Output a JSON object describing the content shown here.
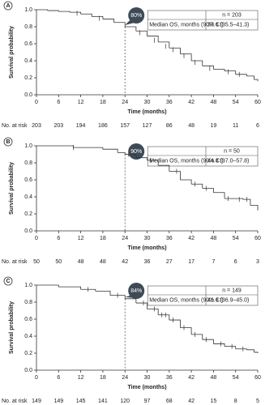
{
  "chart_data": [
    {
      "type": "step",
      "panel": "A",
      "ylabel": "Survival probability",
      "xlabel": "Time (months)",
      "xlim": [
        0,
        60
      ],
      "ylim": [
        0,
        1
      ],
      "xticks": [
        0,
        6,
        12,
        18,
        24,
        30,
        36,
        42,
        48,
        54,
        60
      ],
      "yticks": [
        {
          "value": 0,
          "label": "0.0"
        },
        {
          "value": 0.2,
          "label": "0.2"
        },
        {
          "value": 0.4,
          "label": "0.4"
        },
        {
          "value": 0.6,
          "label": "0.6"
        },
        {
          "value": 0.8,
          "label": "0.8"
        },
        {
          "value": 1,
          "label": "1.0"
        }
      ],
      "x": [
        0,
        3,
        6,
        9,
        12,
        15,
        18,
        21,
        24,
        27,
        30,
        33,
        36,
        39,
        42,
        45,
        48,
        51,
        54,
        57,
        59,
        60
      ],
      "values": [
        1,
        0.99,
        0.98,
        0.97,
        0.95,
        0.92,
        0.89,
        0.85,
        0.8,
        0.75,
        0.69,
        0.62,
        0.55,
        0.48,
        0.4,
        0.34,
        0.3,
        0.28,
        0.24,
        0.22,
        0.18,
        0.16
      ],
      "censored": {
        "x": [
          11,
          17,
          28,
          32,
          35,
          37,
          40,
          43,
          47,
          52,
          55
        ],
        "y": [
          0.96,
          0.9,
          0.73,
          0.64,
          0.57,
          0.53,
          0.46,
          0.38,
          0.31,
          0.27,
          0.24
        ]
      },
      "marker": {
        "x": 24,
        "y": 0.8,
        "label": "80%"
      },
      "n_label": "n = 203",
      "median_label": "Median OS, months (90% CI)",
      "median_value": "37.6 (35.5–41.3)",
      "at_risk": {
        "label": "No. at risk",
        "values": [
          203,
          203,
          194,
          186,
          157,
          127,
          86,
          48,
          19,
          11,
          6
        ]
      }
    },
    {
      "type": "step",
      "panel": "B",
      "ylabel": "Survival probability",
      "xlabel": "Time (months)",
      "xlim": [
        0,
        60
      ],
      "ylim": [
        0,
        1
      ],
      "xticks": [
        0,
        6,
        12,
        18,
        24,
        30,
        36,
        42,
        48,
        54,
        60
      ],
      "yticks": [
        {
          "value": 0,
          "label": "0.0"
        },
        {
          "value": 0.2,
          "label": "0.2"
        },
        {
          "value": 0.4,
          "label": "0.4"
        },
        {
          "value": 0.6,
          "label": "0.6"
        },
        {
          "value": 0.8,
          "label": "0.8"
        },
        {
          "value": 1,
          "label": "1.0"
        }
      ],
      "x": [
        0,
        10,
        18,
        22,
        24,
        27,
        30,
        33,
        36,
        39,
        42,
        45,
        48,
        51,
        56,
        58,
        60
      ],
      "values": [
        1,
        0.98,
        0.96,
        0.92,
        0.9,
        0.86,
        0.83,
        0.77,
        0.7,
        0.6,
        0.55,
        0.5,
        0.45,
        0.38,
        0.37,
        0.3,
        0.24
      ],
      "censored": {
        "x": [
          10,
          25,
          31,
          38,
          43,
          46,
          52,
          55,
          57
        ],
        "y": [
          0.98,
          0.9,
          0.83,
          0.7,
          0.55,
          0.5,
          0.38,
          0.37,
          0.37
        ]
      },
      "marker": {
        "x": 24,
        "y": 0.9,
        "label": "90%"
      },
      "n_label": "n = 50",
      "median_label": "Median OS, months (90% CI)",
      "median_value": "44.8 (37.0–57.8)",
      "at_risk": {
        "label": "No. at risk",
        "values": [
          50,
          50,
          48,
          48,
          42,
          36,
          27,
          17,
          7,
          6,
          3
        ]
      }
    },
    {
      "type": "step",
      "panel": "C",
      "ylabel": "Survival probability",
      "xlabel": "Time (months)",
      "xlim": [
        0,
        60
      ],
      "ylim": [
        0,
        1
      ],
      "xticks": [
        0,
        6,
        12,
        18,
        24,
        30,
        36,
        42,
        48,
        54,
        60
      ],
      "yticks": [
        {
          "value": 0,
          "label": "0.0"
        },
        {
          "value": 0.2,
          "label": "0.2"
        },
        {
          "value": 0.4,
          "label": "0.4"
        },
        {
          "value": 0.6,
          "label": "0.6"
        },
        {
          "value": 0.8,
          "label": "0.8"
        },
        {
          "value": 1,
          "label": "1.0"
        }
      ],
      "x": [
        0,
        6,
        12,
        16,
        20,
        24,
        27,
        30,
        33,
        36,
        39,
        42,
        45,
        48,
        51,
        54,
        57,
        59,
        60
      ],
      "values": [
        1,
        0.98,
        0.95,
        0.93,
        0.88,
        0.84,
        0.79,
        0.72,
        0.65,
        0.59,
        0.5,
        0.42,
        0.36,
        0.31,
        0.28,
        0.25,
        0.24,
        0.21,
        0.2
      ],
      "censored": {
        "x": [
          14,
          22,
          29,
          32,
          34,
          35,
          37,
          40,
          43,
          46,
          50,
          53,
          56
        ],
        "y": [
          0.95,
          0.88,
          0.79,
          0.72,
          0.65,
          0.65,
          0.59,
          0.5,
          0.42,
          0.36,
          0.31,
          0.28,
          0.25
        ]
      },
      "marker": {
        "x": 24,
        "y": 0.84,
        "label": "84%"
      },
      "n_label": "n = 149",
      "median_label": "Median OS, months (90% CI)",
      "median_value": "41.6 (36.9–45.0)",
      "at_risk": {
        "label": "No. at risk",
        "values": [
          149,
          149,
          145,
          141,
          120,
          97,
          68,
          42,
          15,
          8,
          5
        ]
      }
    }
  ]
}
